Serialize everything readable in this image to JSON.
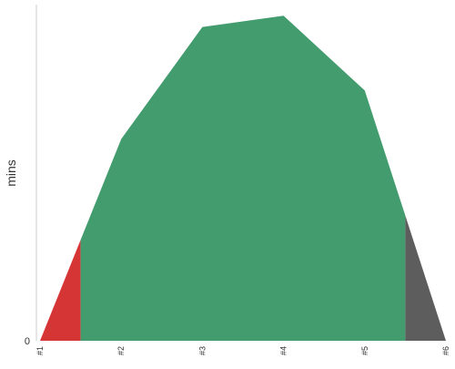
{
  "chart_data": {
    "type": "area",
    "title": "",
    "xlabel": "",
    "ylabel": "mins",
    "categories": [
      "#1",
      "#2",
      "#3",
      "#4",
      "#5",
      "#6"
    ],
    "x": [
      1,
      2,
      3,
      4,
      5,
      6
    ],
    "values": [
      0,
      54,
      84,
      87,
      67,
      0
    ],
    "y_tick_labels": [
      "0"
    ],
    "ylim": [
      0,
      90
    ],
    "grid": false,
    "legend": "none",
    "segments": [
      {
        "from": 1,
        "to": 1.5,
        "color": "#d63536"
      },
      {
        "from": 1.5,
        "to": 5.5,
        "color": "#439c6e"
      },
      {
        "from": 5.5,
        "to": 6,
        "color": "#5d5d5d"
      }
    ],
    "axis_color": "#cccccc",
    "text_color": "#333333"
  }
}
